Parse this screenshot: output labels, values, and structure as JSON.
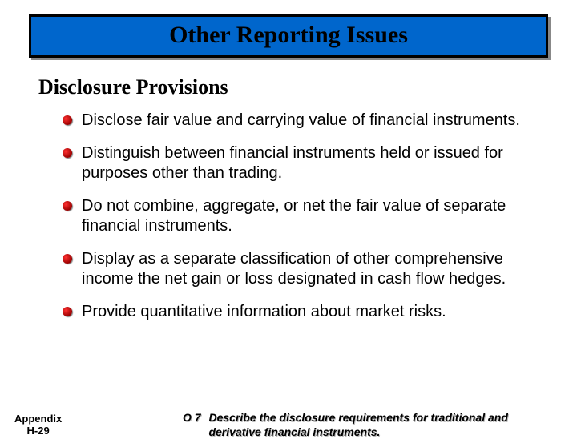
{
  "title": "Other Reporting Issues",
  "heading": "Disclosure Provisions",
  "bullets": [
    "Disclose fair value and carrying value of financial instruments.",
    "Distinguish between financial instruments held or issued for purposes other than trading.",
    "Do not combine, aggregate, or net the fair value of separate financial instruments.",
    "Display as a separate classification of other comprehensive income the net gain or loss designated in cash flow hedges.",
    "Provide quantitative information about market risks."
  ],
  "footer": {
    "appendix_line1": "Appendix",
    "appendix_line2": "H-29",
    "lo_label": "O 7",
    "lo_desc": "Describe the disclosure requirements for traditional and derivative financial instruments."
  },
  "colors": {
    "title_background": "#0066cc",
    "title_border": "#000000",
    "bullet_color": "#cc0000",
    "text_color": "#000000",
    "background": "#ffffff"
  }
}
